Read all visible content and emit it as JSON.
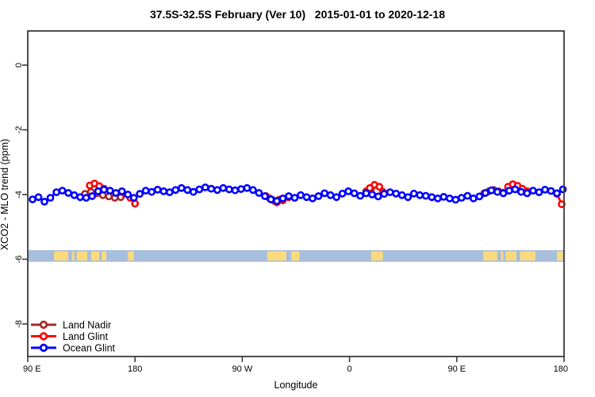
{
  "title": "37.5S-32.5S February (Ver 10)   2015-01-01 to 2020-12-18",
  "chart_data": {
    "type": "scatter",
    "title": "37.5S-32.5S February (Ver 10)   2015-01-01 to 2020-12-18",
    "xlabel": "Longitude",
    "ylabel": "XCO2 - MLO trend (ppm)",
    "x_axis": {
      "tick_labels": [
        "90 E",
        "180",
        "90 W",
        "0",
        "90 E",
        "180"
      ],
      "tick_positions_deg": [
        0,
        90,
        180,
        270,
        360,
        450
      ],
      "range_deg": [
        0,
        450
      ],
      "note": "longitude axis starts at 90E and wraps eastward through 180, 90W, 0, 90E to 180"
    },
    "y_axis": {
      "tick_labels": [
        "0",
        "-2",
        "-4",
        "-6",
        "-8"
      ],
      "tick_values": [
        0,
        -2,
        -4,
        -6,
        -8
      ],
      "range": [
        1.05,
        -9.0
      ],
      "grid": false
    },
    "legend": {
      "position": "bottom-left",
      "items": [
        "Land Nadir",
        "Land Glint",
        "Ocean Glint"
      ]
    },
    "map_strip": {
      "ocean_color": "#A7BEDC",
      "land_color": "#FBD97E",
      "value_top": -5.72,
      "value_bottom": -6.08,
      "land_patches_deg": [
        [
          22,
          34
        ],
        [
          37,
          39
        ],
        [
          41,
          50
        ],
        [
          53,
          60
        ],
        [
          62,
          66
        ],
        [
          84,
          89
        ],
        [
          201,
          217
        ],
        [
          221,
          228
        ],
        [
          288,
          298
        ],
        [
          382,
          394
        ],
        [
          397,
          399
        ],
        [
          401,
          410
        ],
        [
          413,
          426
        ],
        [
          444,
          449
        ]
      ]
    },
    "series": [
      {
        "name": "Land Nadir",
        "color": "#A52A2A",
        "segments": [
          [
            [
              48,
              -3.98
            ],
            [
              53,
              -3.92
            ],
            [
              58,
              -3.96
            ],
            [
              63,
              -4.02
            ],
            [
              68,
              -4.06
            ],
            [
              73,
              -4.1
            ],
            [
              78,
              -4.08
            ]
          ],
          [
            [
              203,
              -4.12
            ],
            [
              207,
              -4.2
            ],
            [
              211,
              -4.16
            ]
          ],
          [
            [
              284,
              -3.9
            ],
            [
              288,
              -3.82
            ]
          ],
          [
            [
              383,
              -3.96
            ],
            [
              387,
              -3.9
            ],
            [
              391,
              -3.86
            ],
            [
              395,
              -3.9
            ],
            [
              399,
              -3.94
            ],
            [
              403,
              -3.88
            ]
          ]
        ]
      },
      {
        "name": "Land Glint",
        "color": "#FF0000",
        "segments": [
          [
            [
              52,
              -3.72
            ],
            [
              56,
              -3.66
            ],
            [
              60,
              -3.74
            ],
            [
              64,
              -3.82
            ],
            [
              86,
              -4.1
            ],
            [
              90,
              -4.28
            ]
          ],
          [
            [
              200,
              -4.05
            ],
            [
              205,
              -4.16
            ],
            [
              209,
              -4.24
            ],
            [
              214,
              -4.18
            ],
            [
              219,
              -4.08
            ]
          ],
          [
            [
              287,
              -3.8
            ],
            [
              291,
              -3.7
            ],
            [
              295,
              -3.76
            ],
            [
              298,
              -3.92
            ]
          ],
          [
            [
              403,
              -3.76
            ],
            [
              407,
              -3.68
            ],
            [
              411,
              -3.73
            ],
            [
              415,
              -3.82
            ],
            [
              419,
              -3.9
            ]
          ],
          [
            [
              444,
              -3.98
            ],
            [
              448,
              -4.3
            ]
          ]
        ]
      },
      {
        "name": "Ocean Glint",
        "color": "#0000FF",
        "segments": [
          [
            [
              4,
              -4.15
            ],
            [
              9,
              -4.08
            ],
            [
              14,
              -4.22
            ],
            [
              19,
              -4.1
            ],
            [
              24,
              -3.93
            ],
            [
              29,
              -3.88
            ],
            [
              34,
              -3.95
            ],
            [
              39,
              -4.02
            ],
            [
              44,
              -4.08
            ],
            [
              49,
              -4.1
            ],
            [
              54,
              -4.05
            ],
            [
              59,
              -3.9
            ],
            [
              64,
              -3.85
            ],
            [
              69,
              -3.88
            ],
            [
              74,
              -3.95
            ],
            [
              79,
              -3.9
            ],
            [
              84,
              -4.0
            ],
            [
              89,
              -4.1
            ],
            [
              94,
              -3.98
            ],
            [
              99,
              -3.88
            ],
            [
              104,
              -3.92
            ],
            [
              109,
              -3.85
            ],
            [
              114,
              -3.9
            ],
            [
              119,
              -3.93
            ],
            [
              124,
              -3.86
            ],
            [
              129,
              -3.8
            ],
            [
              134,
              -3.86
            ],
            [
              139,
              -3.92
            ],
            [
              144,
              -3.84
            ],
            [
              149,
              -3.78
            ],
            [
              154,
              -3.82
            ],
            [
              159,
              -3.86
            ],
            [
              164,
              -3.8
            ],
            [
              169,
              -3.84
            ],
            [
              174,
              -3.87
            ],
            [
              179,
              -3.83
            ],
            [
              184,
              -3.8
            ],
            [
              189,
              -3.86
            ],
            [
              194,
              -3.95
            ],
            [
              199,
              -4.05
            ],
            [
              204,
              -4.15
            ],
            [
              209,
              -4.2
            ],
            [
              214,
              -4.12
            ],
            [
              219,
              -4.05
            ],
            [
              224,
              -4.1
            ],
            [
              229,
              -4.02
            ],
            [
              234,
              -4.08
            ],
            [
              239,
              -4.12
            ],
            [
              244,
              -4.05
            ],
            [
              249,
              -3.96
            ],
            [
              254,
              -4.02
            ],
            [
              259,
              -4.08
            ],
            [
              264,
              -3.97
            ],
            [
              269,
              -3.9
            ],
            [
              274,
              -3.96
            ],
            [
              279,
              -4.04
            ],
            [
              284,
              -3.96
            ],
            [
              289,
              -4.0
            ],
            [
              294,
              -4.06
            ],
            [
              299,
              -3.98
            ],
            [
              304,
              -3.93
            ],
            [
              309,
              -3.97
            ],
            [
              314,
              -4.02
            ],
            [
              319,
              -4.08
            ],
            [
              324,
              -3.97
            ],
            [
              329,
              -4.02
            ],
            [
              334,
              -4.04
            ],
            [
              339,
              -4.08
            ],
            [
              344,
              -4.12
            ],
            [
              349,
              -4.07
            ],
            [
              354,
              -4.12
            ],
            [
              359,
              -4.16
            ],
            [
              364,
              -4.1
            ],
            [
              369,
              -4.04
            ],
            [
              374,
              -4.12
            ],
            [
              379,
              -4.06
            ],
            [
              384,
              -3.95
            ],
            [
              389,
              -3.87
            ],
            [
              394,
              -3.92
            ],
            [
              399,
              -3.96
            ],
            [
              404,
              -3.88
            ],
            [
              409,
              -3.84
            ],
            [
              414,
              -3.92
            ],
            [
              419,
              -3.96
            ],
            [
              424,
              -3.88
            ],
            [
              429,
              -3.93
            ],
            [
              434,
              -3.85
            ],
            [
              439,
              -3.89
            ],
            [
              444,
              -3.96
            ],
            [
              449,
              -3.84
            ]
          ]
        ]
      }
    ],
    "style": {
      "frame_color": "#3b3b3b",
      "marker": "open-circle-white-fill",
      "background": "#ffffff"
    }
  }
}
